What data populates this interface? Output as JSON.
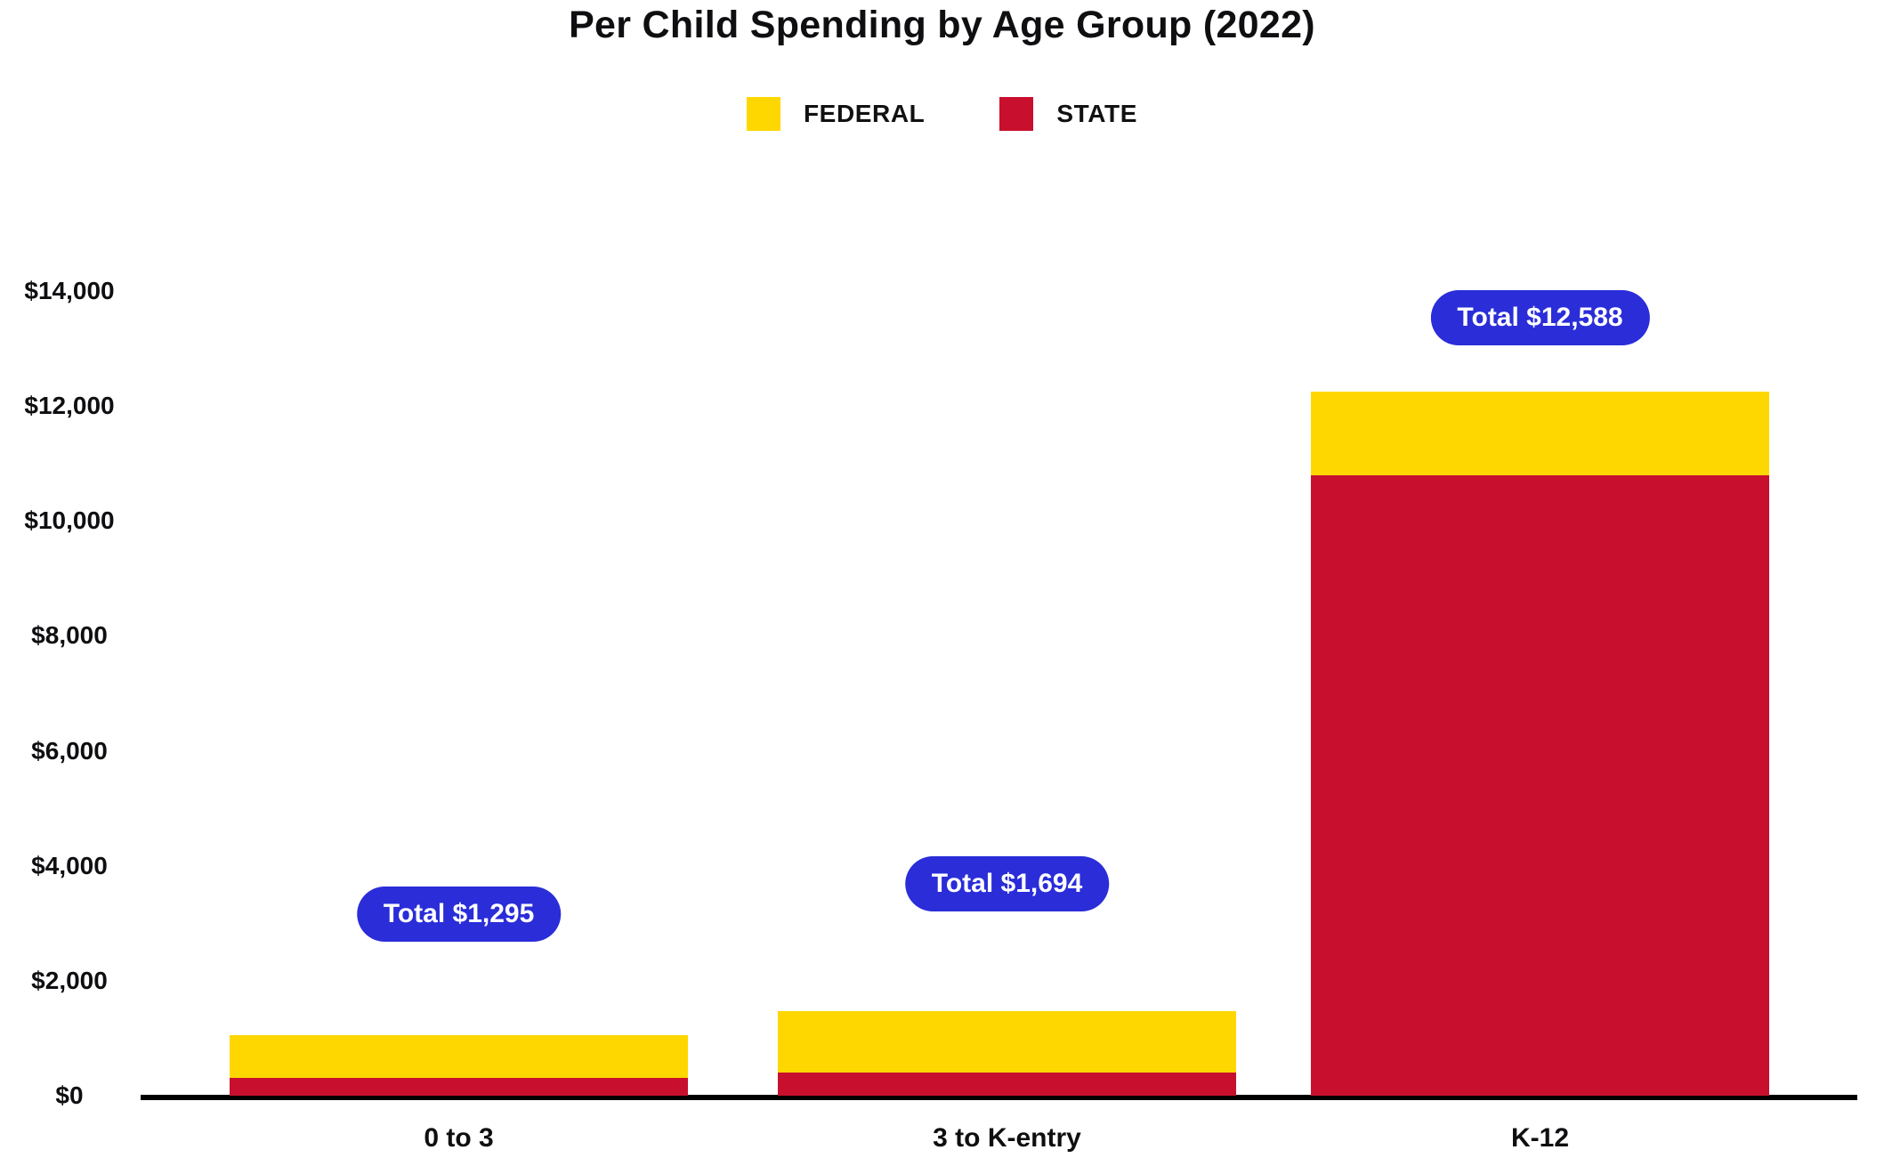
{
  "chart_data": {
    "type": "bar",
    "stacked": true,
    "title": "Per Child Spending by Age Group (2022)",
    "categories": [
      "0 to 3",
      "3 to K-entry",
      "K-12"
    ],
    "series": [
      {
        "name": "FEDERAL",
        "color": "#FFD700",
        "values": [
          750,
          1070,
          1455
        ]
      },
      {
        "name": "STATE",
        "color": "#C8102E",
        "values": [
          310,
          400,
          10800
        ]
      }
    ],
    "stack_order_bottom_to_top": [
      "STATE",
      "FEDERAL"
    ],
    "totals": [
      {
        "category": "0 to 3",
        "label": "Total $1,295",
        "value": 1295
      },
      {
        "category": "3 to K-entry",
        "label": "Total $1,694",
        "value": 1694
      },
      {
        "category": "K-12",
        "label": "Total $12,588",
        "value": 12588
      }
    ],
    "xlabel": "",
    "ylabel": "",
    "y_axis": {
      "min": 0,
      "max": 14000,
      "tick_step": 2000,
      "tick_labels": [
        "$0",
        "$2,000",
        "$4,000",
        "$6,000",
        "$8,000",
        "$10,000",
        "$12,000",
        "$14,000"
      ]
    },
    "legend": {
      "position": "top-center",
      "entries": [
        "FEDERAL",
        "STATE"
      ]
    },
    "grid": false,
    "colors": {
      "federal": "#FFD700",
      "state": "#C8102E",
      "total_badge_background": "#2A2DD8",
      "total_badge_text": "#FFFFFF",
      "text": "#111111",
      "axis_line": "#000000",
      "background": "#FFFFFF"
    }
  }
}
